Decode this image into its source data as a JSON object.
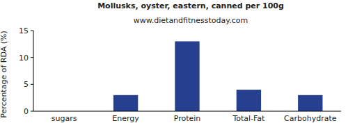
{
  "chart_data": {
    "type": "bar",
    "title": "Mollusks, oyster, eastern, canned per 100g",
    "subtitle": "www.dietandfitnesstoday.com",
    "y_label": "Percentage of RDA (%)",
    "categories": [
      "sugars",
      "Energy",
      "Protein",
      "Total-Fat",
      "Carbohydrate"
    ],
    "values": [
      0,
      3,
      13,
      4,
      3
    ],
    "color": "#263f8f",
    "ylim": [
      0,
      15
    ],
    "yticks": [
      0,
      5,
      10,
      15
    ],
    "grid": false
  }
}
